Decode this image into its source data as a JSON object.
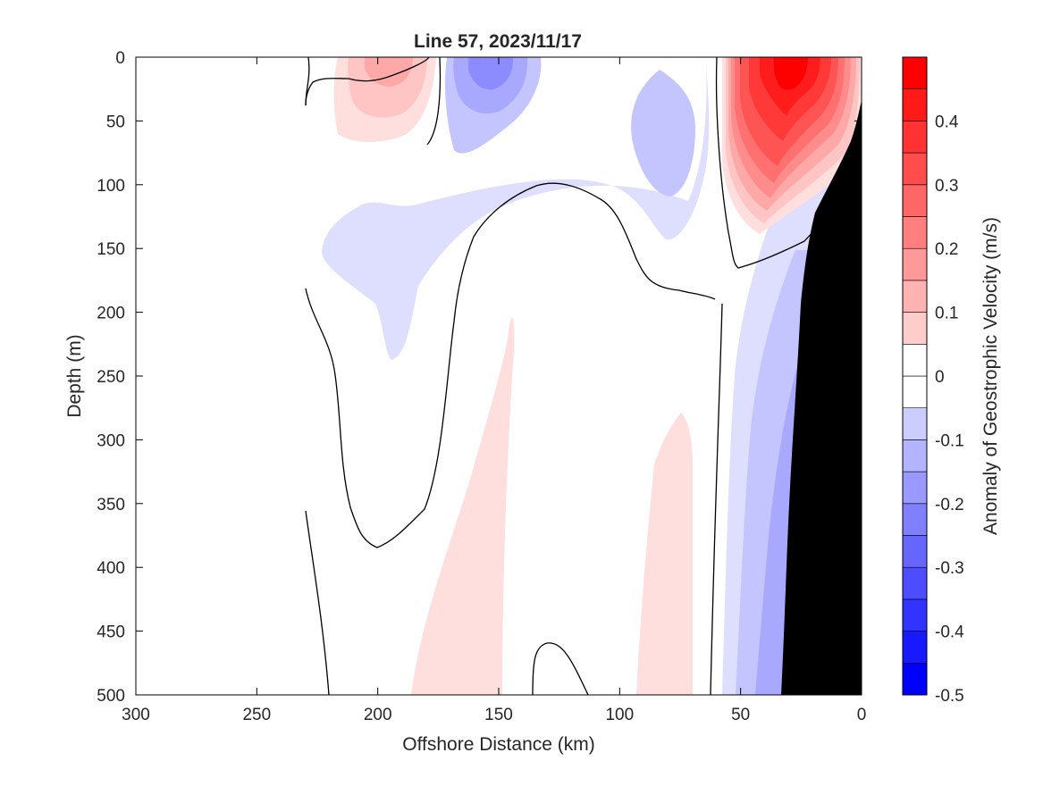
{
  "chart_data": {
    "type": "heatmap",
    "title": "Line 57, 2023/11/17",
    "xlabel": "Offshore Distance (km)",
    "ylabel": "Depth (m)",
    "xlim": [
      300,
      0
    ],
    "ylim": [
      500,
      0
    ],
    "x_ticks": [
      "300",
      "250",
      "200",
      "150",
      "100",
      "50",
      "0"
    ],
    "y_ticks": [
      "0",
      "50",
      "100",
      "150",
      "200",
      "250",
      "300",
      "350",
      "400",
      "450",
      "500"
    ],
    "grid": false,
    "colorbar": {
      "label": "Anomaly of Geostrophic Velocity (m/s)",
      "range": [
        -0.5,
        0.5
      ],
      "step": 0.05,
      "tick_labels": [
        "0.4",
        "0.3",
        "0.2",
        "0.1",
        "0",
        "-0.1",
        "-0.2",
        "-0.3",
        "-0.4",
        "-0.5"
      ],
      "negative_color": "#0000ff",
      "zero_color": "#ffffff",
      "positive_color": "#ff0000"
    },
    "bathymetry_color": "#000000",
    "features": [
      {
        "kind": "positive-core",
        "center_km": 30,
        "center_depth_m": 15,
        "max_value": 0.45
      },
      {
        "kind": "positive-core",
        "center_km": 195,
        "center_depth_m": 15,
        "max_value": 0.2
      },
      {
        "kind": "negative-core",
        "center_km": 152,
        "center_depth_m": 15,
        "max_value": -0.25
      },
      {
        "kind": "negative-core",
        "center_km": 82,
        "center_depth_m": 70,
        "max_value": -0.1
      },
      {
        "kind": "negative-slope-band",
        "from_km": 55,
        "to_km": 25,
        "from_depth_m": 180,
        "to_depth_m": 500,
        "min_value": -0.25
      },
      {
        "kind": "positive-band",
        "from_km": 187,
        "to_km": 148,
        "from_depth_m": 205,
        "to_depth_m": 500,
        "max_value": 0.05
      },
      {
        "kind": "positive-band",
        "from_km": 92,
        "to_km": 70,
        "from_depth_m": 278,
        "to_depth_m": 500,
        "max_value": 0.05
      }
    ]
  }
}
